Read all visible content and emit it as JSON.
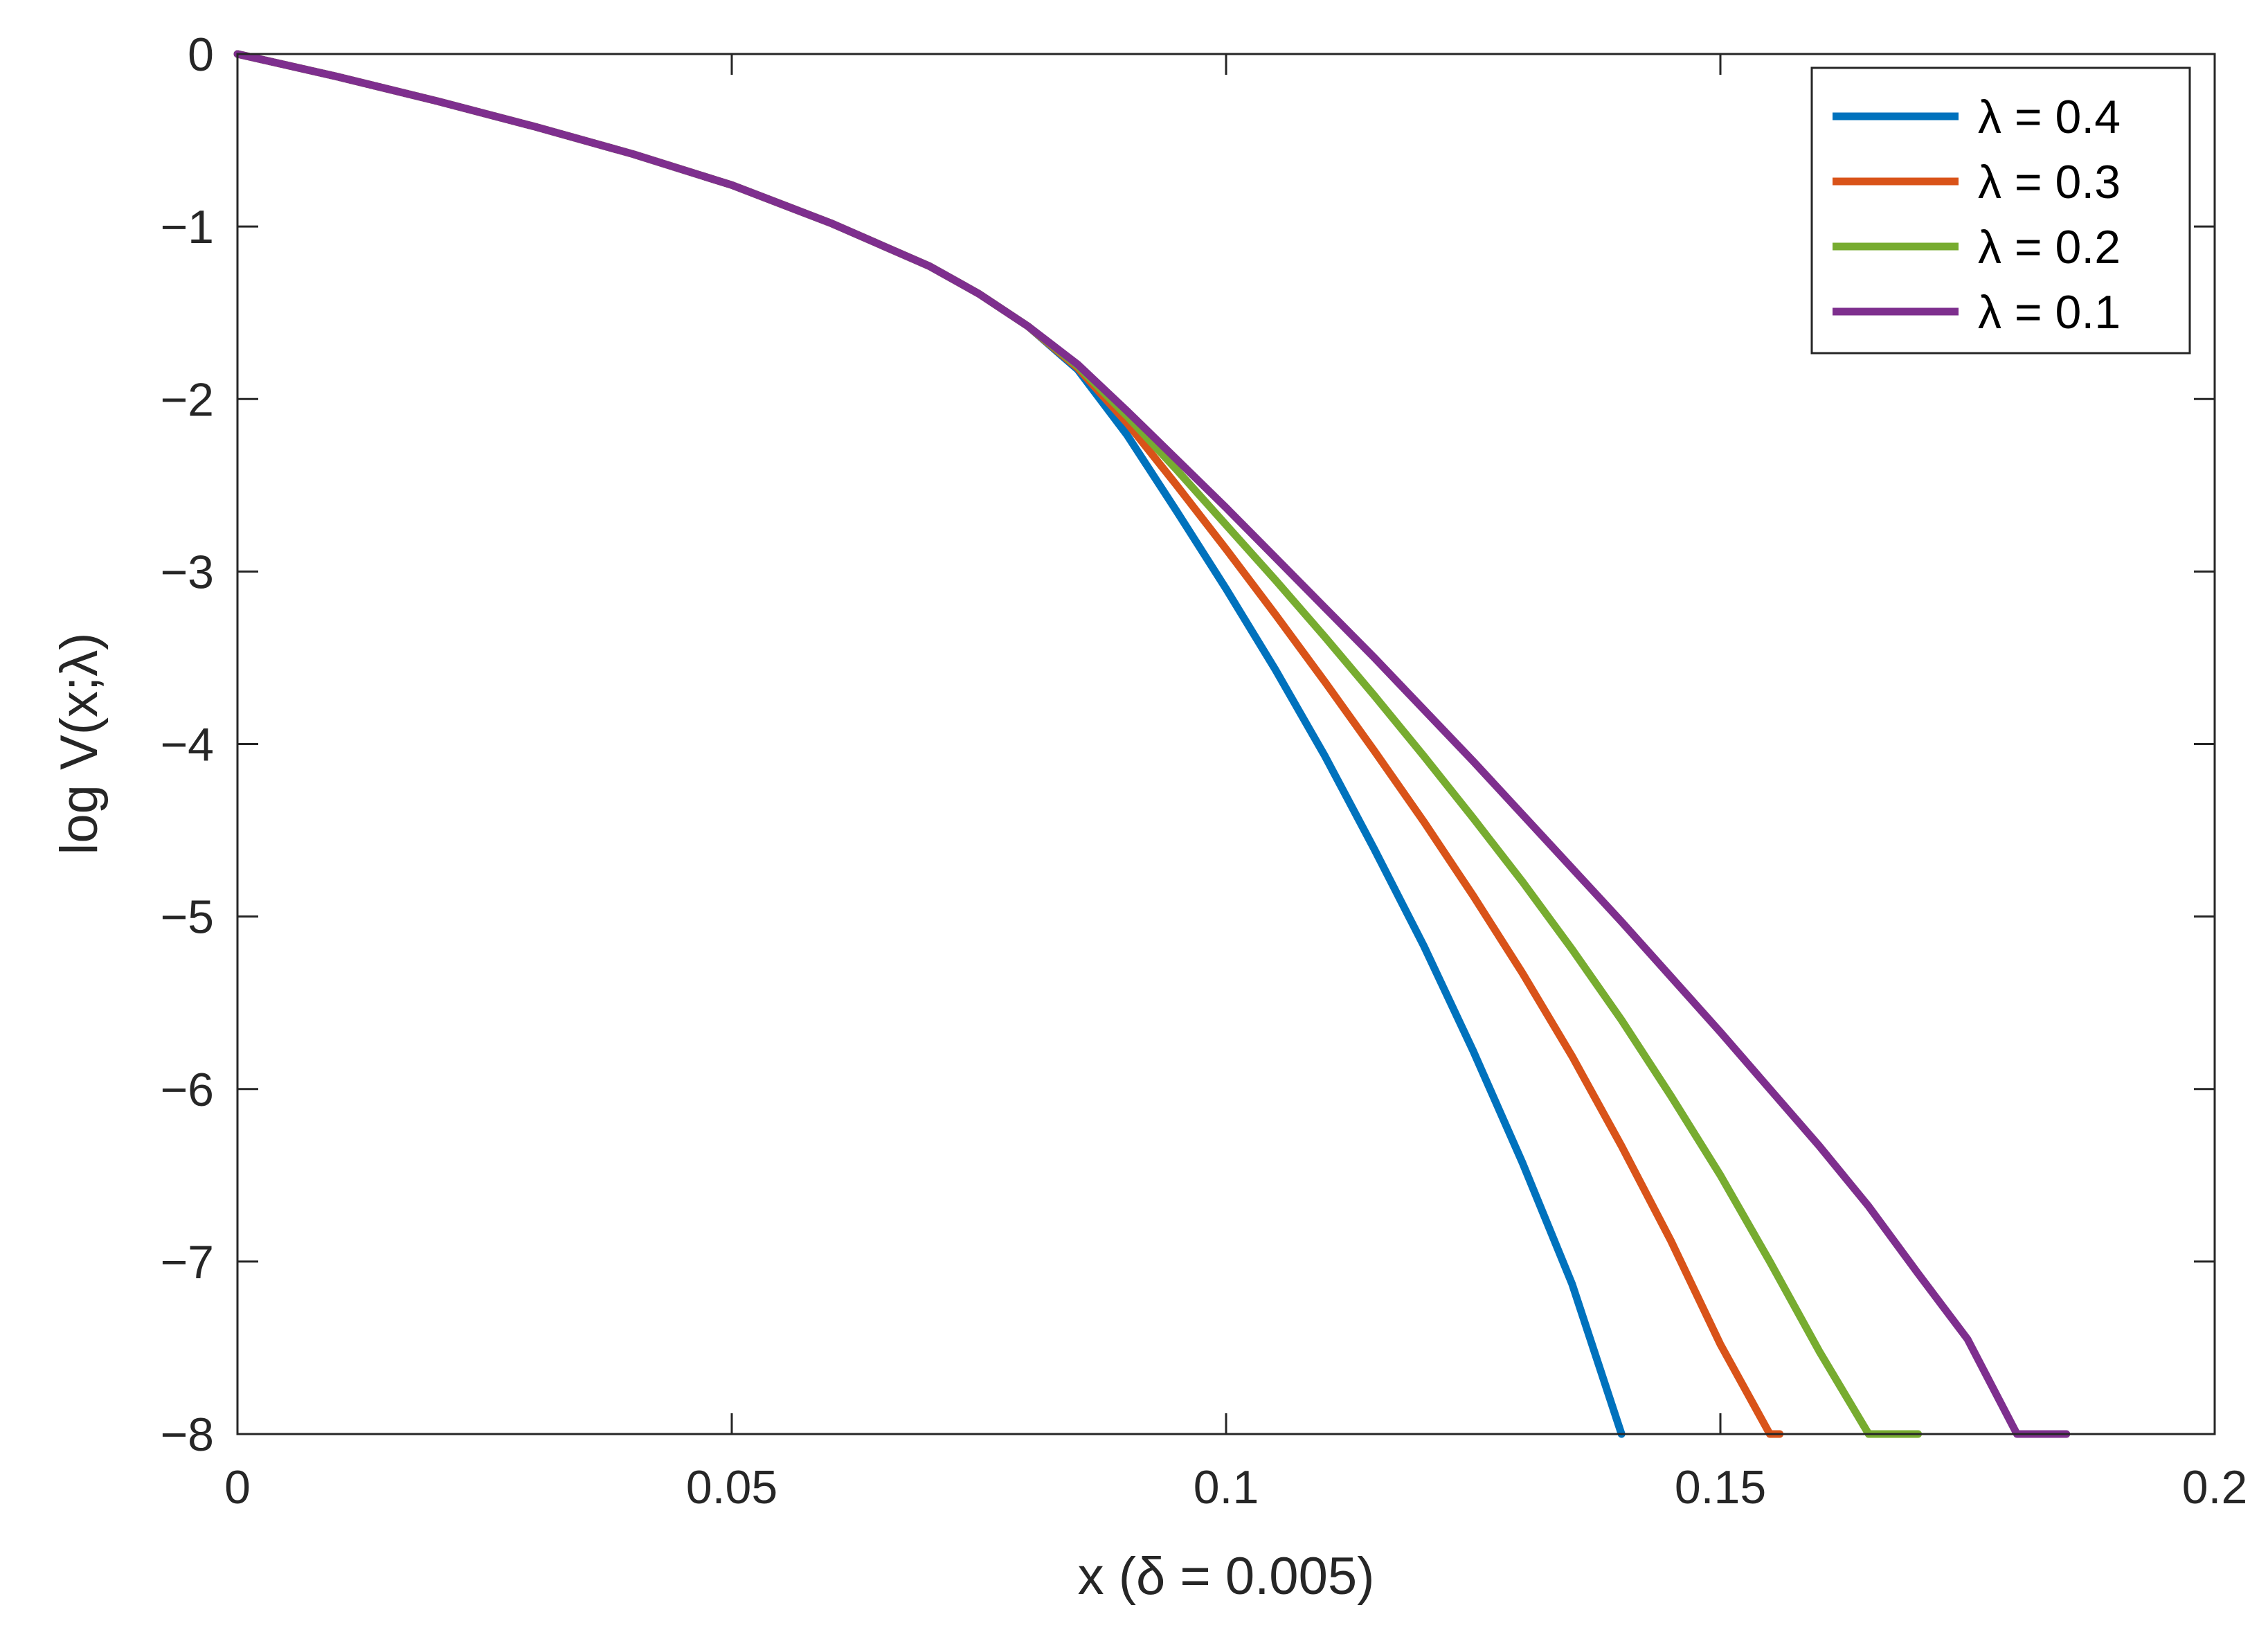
{
  "chart_data": {
    "type": "line",
    "title": "",
    "xlabel": "x (δ = 0.005)",
    "ylabel": "log V(x;λ)",
    "xlim": [
      0,
      0.2
    ],
    "ylim": [
      -8,
      0
    ],
    "xticks": [
      0,
      0.05,
      0.1,
      0.15,
      0.2
    ],
    "xtick_labels": [
      "0",
      "0.05",
      "0.1",
      "0.15",
      "0.2"
    ],
    "yticks": [
      0,
      -1,
      -2,
      -3,
      -4,
      -5,
      -6,
      -7,
      -8
    ],
    "ytick_labels": [
      "0",
      "−1",
      "−2",
      "−3",
      "−4",
      "−5",
      "−6",
      "−7",
      "−8"
    ],
    "grid": false,
    "legend_position": "top-right",
    "series": [
      {
        "name": "λ = 0.4",
        "color": "#0072BD",
        "x": [
          0,
          0.01,
          0.02,
          0.03,
          0.04,
          0.05,
          0.06,
          0.07,
          0.075,
          0.08,
          0.085,
          0.09,
          0.095,
          0.1,
          0.105,
          0.11,
          0.115,
          0.12,
          0.125,
          0.13,
          0.135,
          0.14
        ],
        "y": [
          0,
          -0.13,
          -0.27,
          -0.42,
          -0.58,
          -0.76,
          -0.98,
          -1.23,
          -1.39,
          -1.58,
          -1.83,
          -2.21,
          -2.65,
          -3.1,
          -3.57,
          -4.07,
          -4.61,
          -5.17,
          -5.78,
          -6.43,
          -7.13,
          -8.0
        ]
      },
      {
        "name": "λ = 0.3",
        "color": "#D95319",
        "x": [
          0,
          0.01,
          0.02,
          0.03,
          0.04,
          0.05,
          0.06,
          0.07,
          0.075,
          0.08,
          0.085,
          0.09,
          0.095,
          0.1,
          0.105,
          0.11,
          0.115,
          0.12,
          0.125,
          0.13,
          0.135,
          0.14,
          0.145,
          0.15,
          0.155,
          0.156
        ],
        "y": [
          0,
          -0.13,
          -0.27,
          -0.42,
          -0.58,
          -0.76,
          -0.98,
          -1.23,
          -1.39,
          -1.58,
          -1.82,
          -2.14,
          -2.5,
          -2.87,
          -3.25,
          -3.64,
          -4.04,
          -4.45,
          -4.88,
          -5.33,
          -5.81,
          -6.33,
          -6.88,
          -7.48,
          -8.05,
          -8.0
        ]
      },
      {
        "name": "λ = 0.2",
        "color": "#77AC30",
        "x": [
          0,
          0.01,
          0.02,
          0.03,
          0.04,
          0.05,
          0.06,
          0.07,
          0.075,
          0.08,
          0.085,
          0.09,
          0.095,
          0.1,
          0.105,
          0.11,
          0.115,
          0.12,
          0.125,
          0.13,
          0.135,
          0.14,
          0.145,
          0.15,
          0.155,
          0.16,
          0.165,
          0.17
        ],
        "y": [
          0,
          -0.13,
          -0.27,
          -0.42,
          -0.58,
          -0.76,
          -0.98,
          -1.23,
          -1.39,
          -1.58,
          -1.81,
          -2.1,
          -2.41,
          -2.73,
          -3.05,
          -3.38,
          -3.72,
          -4.07,
          -4.43,
          -4.8,
          -5.19,
          -5.6,
          -6.04,
          -6.5,
          -7.0,
          -7.52,
          -8.05,
          -8.0
        ]
      },
      {
        "name": "λ = 0.1",
        "color": "#7E2F8E",
        "x": [
          0,
          0.01,
          0.02,
          0.03,
          0.04,
          0.05,
          0.06,
          0.07,
          0.075,
          0.08,
          0.085,
          0.09,
          0.095,
          0.1,
          0.105,
          0.11,
          0.115,
          0.12,
          0.125,
          0.13,
          0.135,
          0.14,
          0.145,
          0.15,
          0.155,
          0.16,
          0.165,
          0.17,
          0.175,
          0.18,
          0.185
        ],
        "y": [
          0,
          -0.13,
          -0.27,
          -0.42,
          -0.58,
          -0.76,
          -0.98,
          -1.23,
          -1.39,
          -1.58,
          -1.8,
          -2.07,
          -2.35,
          -2.63,
          -2.92,
          -3.21,
          -3.5,
          -3.8,
          -4.1,
          -4.41,
          -4.72,
          -5.03,
          -5.35,
          -5.67,
          -6.0,
          -6.33,
          -6.68,
          -7.07,
          -7.45,
          -8.0,
          -8.0
        ]
      }
    ]
  }
}
